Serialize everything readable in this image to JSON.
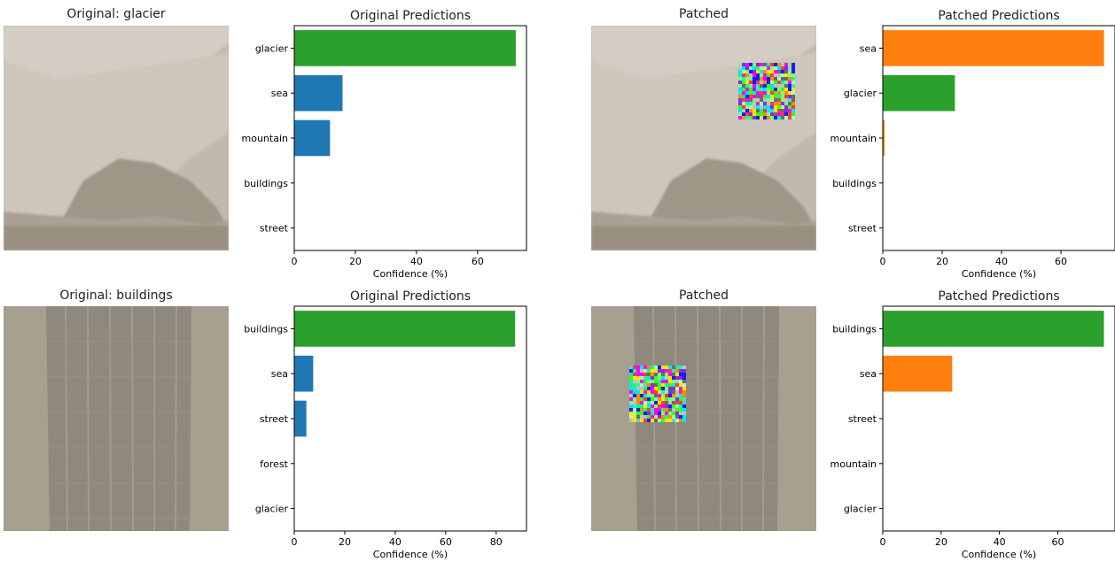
{
  "colors": {
    "correct": "#2ca02c",
    "other_original": "#1f77b4",
    "other_patched": "#ff7f0e",
    "axis": "#000000"
  },
  "rows": [
    {
      "original_title": "Original: glacier",
      "patched_title": "Patched",
      "original_chart_title": "Original Predictions",
      "patched_chart_title": "Patched Predictions"
    },
    {
      "original_title": "Original: buildings",
      "patched_title": "Patched",
      "original_chart_title": "Original Predictions",
      "patched_chart_title": "Patched Predictions"
    }
  ],
  "chart_data": [
    {
      "type": "bar",
      "orientation": "horizontal",
      "title": "Original Predictions",
      "xlabel": "Confidence (%)",
      "categories": [
        "glacier",
        "sea",
        "mountain",
        "buildings",
        "street"
      ],
      "values": [
        72.5,
        15.8,
        11.7,
        0,
        0
      ],
      "bar_colors": [
        "#2ca02c",
        "#1f77b4",
        "#1f77b4",
        "#1f77b4",
        "#1f77b4"
      ],
      "xticks": [
        0,
        20,
        40,
        60
      ],
      "xlim": [
        0,
        76
      ]
    },
    {
      "type": "bar",
      "orientation": "horizontal",
      "title": "Patched Predictions",
      "xlabel": "Confidence (%)",
      "categories": [
        "sea",
        "glacier",
        "mountain",
        "buildings",
        "street"
      ],
      "values": [
        74.5,
        24.3,
        0.6,
        0,
        0
      ],
      "bar_colors": [
        "#ff7f0e",
        "#2ca02c",
        "#ff7f0e",
        "#ff7f0e",
        "#ff7f0e"
      ],
      "xticks": [
        0,
        20,
        40,
        60
      ],
      "xlim": [
        0,
        78.2
      ]
    },
    {
      "type": "bar",
      "orientation": "horizontal",
      "title": "Original Predictions",
      "xlabel": "Confidence (%)",
      "categories": [
        "buildings",
        "sea",
        "street",
        "forest",
        "glacier"
      ],
      "values": [
        87.5,
        7.5,
        4.8,
        0,
        0
      ],
      "bar_colors": [
        "#2ca02c",
        "#1f77b4",
        "#1f77b4",
        "#1f77b4",
        "#1f77b4"
      ],
      "xticks": [
        0,
        20,
        40,
        60,
        80
      ],
      "xlim": [
        0,
        92
      ]
    },
    {
      "type": "bar",
      "orientation": "horizontal",
      "title": "Patched Predictions",
      "xlabel": "Confidence (%)",
      "categories": [
        "buildings",
        "sea",
        "street",
        "mountain",
        "glacier"
      ],
      "values": [
        75.8,
        23.8,
        0,
        0,
        0
      ],
      "bar_colors": [
        "#2ca02c",
        "#ff7f0e",
        "#ff7f0e",
        "#ff7f0e",
        "#ff7f0e"
      ],
      "xticks": [
        0,
        20,
        40,
        60
      ],
      "xlim": [
        0,
        79.6
      ]
    }
  ]
}
